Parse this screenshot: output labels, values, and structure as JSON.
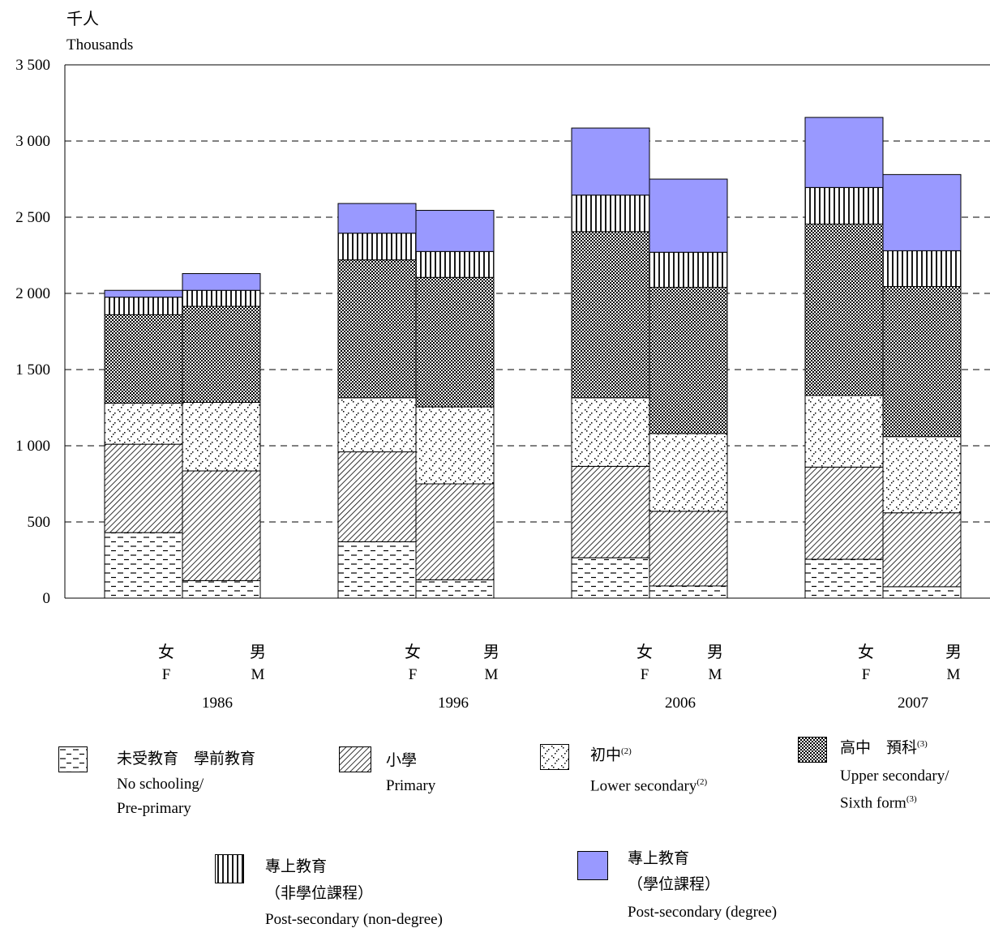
{
  "chart_data": {
    "type": "bar",
    "stacked": true,
    "yunit_zh": "千人",
    "yunit_en": "Thousands",
    "ylim": [
      0,
      3500
    ],
    "yticks": [
      0,
      500,
      1000,
      1500,
      2000,
      2500,
      3000,
      3500
    ],
    "ytick_labels": [
      "0",
      "500",
      "1 000",
      "1 500",
      "2 000",
      "2 500",
      "3 000",
      "3 500"
    ],
    "grid": "dashed horizontal",
    "groups": [
      "1986",
      "1996",
      "2006",
      "2007"
    ],
    "sexes": [
      {
        "zh": "女",
        "en": "F"
      },
      {
        "zh": "男",
        "en": "M"
      }
    ],
    "series": [
      {
        "key": "noschool",
        "zh": "未受教育　學前教育",
        "en1": "No schooling/",
        "en2": "Pre-primary",
        "sup_zh": "",
        "sup_en": "",
        "values": [
          430,
          115,
          370,
          120,
          265,
          80,
          255,
          75
        ]
      },
      {
        "key": "primary",
        "zh": "小學",
        "en1": "Primary",
        "en2": "",
        "sup_zh": "",
        "sup_en": "",
        "values": [
          580,
          720,
          590,
          630,
          600,
          490,
          605,
          485
        ]
      },
      {
        "key": "lowersec",
        "zh": "初中",
        "en1": "Lower secondary",
        "en2": "",
        "sup_zh": "(2)",
        "sup_en": "(2)",
        "values": [
          270,
          450,
          355,
          505,
          450,
          510,
          470,
          500
        ]
      },
      {
        "key": "uppersec",
        "zh": "高中　預科",
        "en1": "Upper secondary/",
        "en2": "Sixth form",
        "sup_zh": "(3)",
        "sup_en": "(3)",
        "values": [
          580,
          630,
          905,
          850,
          1090,
          960,
          1125,
          985
        ]
      },
      {
        "key": "nondeg",
        "zh": "專上教育",
        "zh2": "（非學位課程）",
        "en1": "Post-secondary (non-degree)",
        "en2": "",
        "sup_zh": "",
        "sup_en": "",
        "values": [
          115,
          105,
          175,
          170,
          240,
          230,
          240,
          235
        ]
      },
      {
        "key": "degree",
        "zh": "專上教育",
        "zh2": "（學位課程）",
        "en1": "Post-secondary (degree)",
        "en2": "",
        "sup_zh": "",
        "sup_en": "",
        "values": [
          45,
          110,
          195,
          270,
          440,
          480,
          460,
          500
        ]
      }
    ],
    "colors": {
      "degree": "#9999ff",
      "grid": "#000000"
    }
  }
}
